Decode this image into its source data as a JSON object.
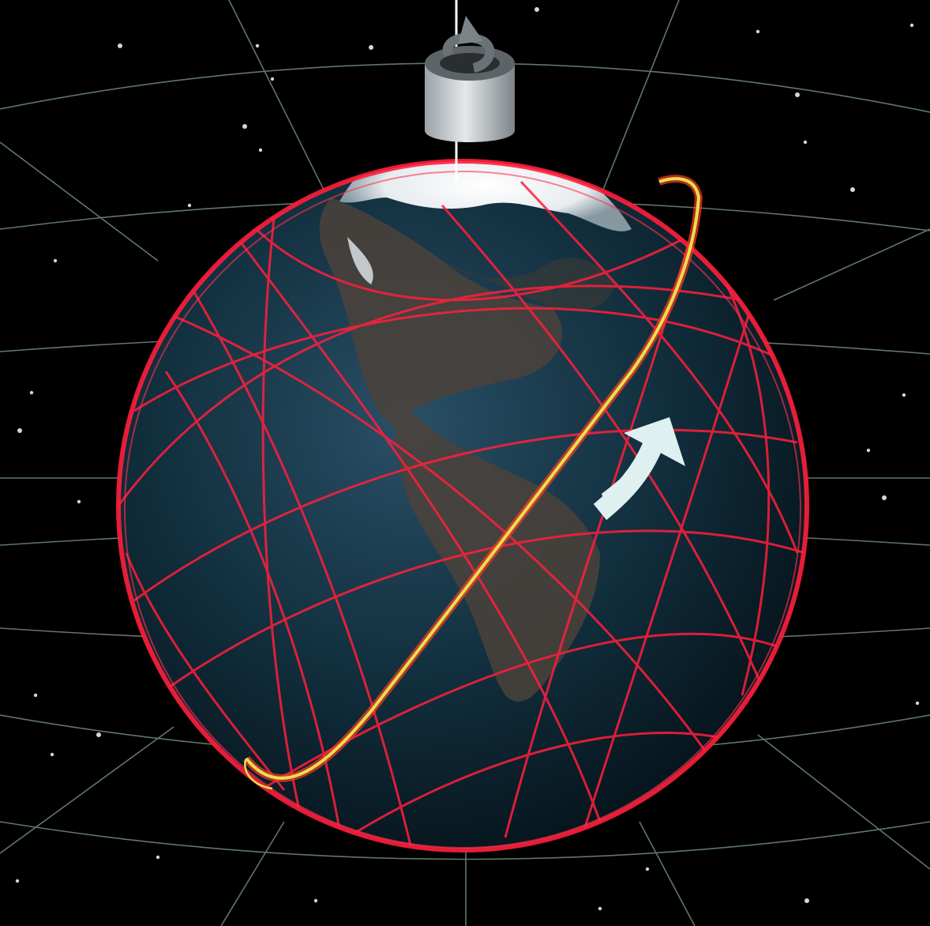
{
  "scene": {
    "background_color": "#000000",
    "celestial_grid_color": "#7fa08a",
    "orbit_color": "#ff1f3c",
    "highlight_orbit_color": "#e8e04a",
    "highlight_orbit_accent": "#ff3b2a",
    "rotation_axis_color": "#ffffff",
    "polar_ice_color": "#f2f4f6",
    "ocean_color": "#0f2838",
    "land_color": "#4a4038",
    "axis_rotation_symbol": {
      "icon": "cylinder-rotation-arrow-icon",
      "color": "#b4babd"
    },
    "orbit_direction_arrow": {
      "icon": "curved-arrow-icon",
      "color": "#dff0f0"
    }
  }
}
